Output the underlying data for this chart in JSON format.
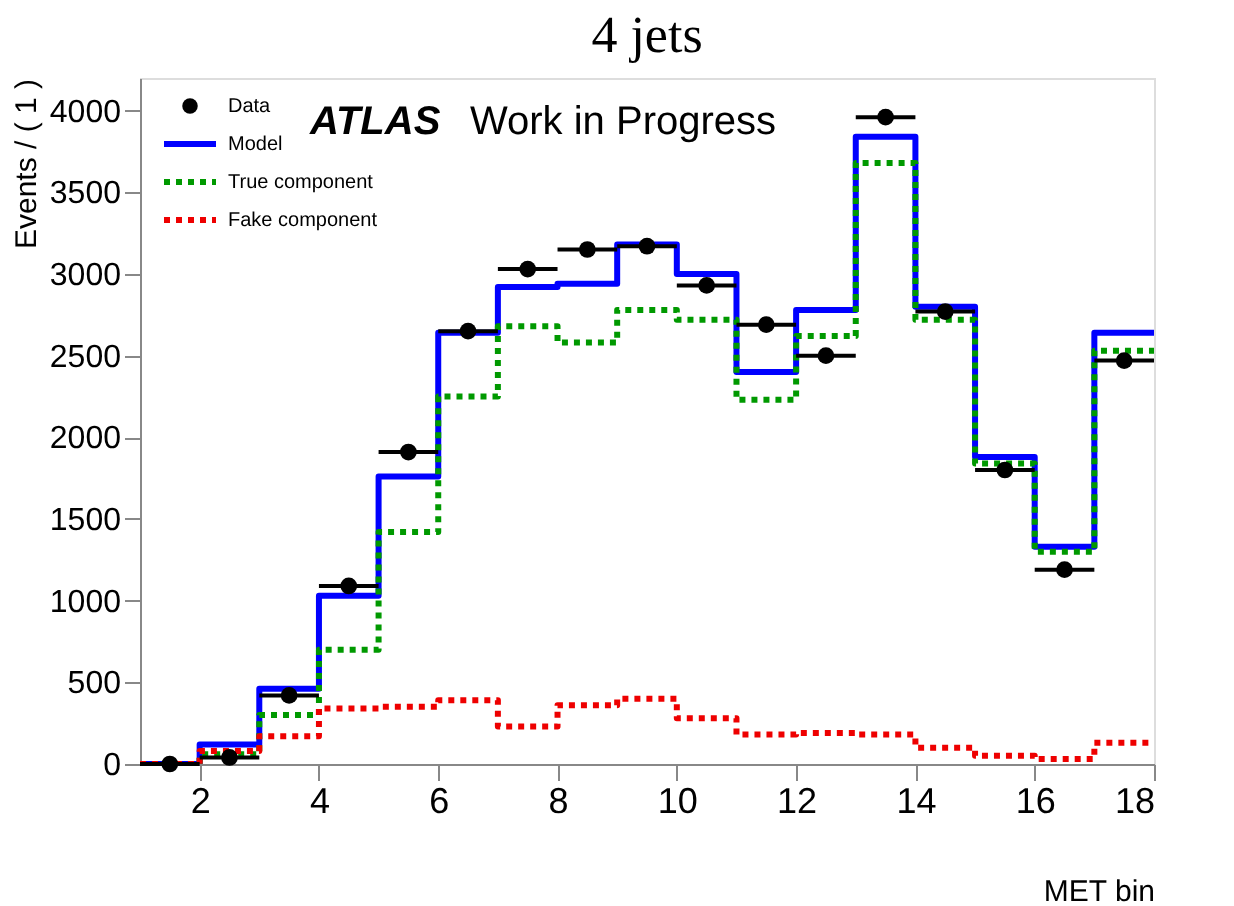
{
  "chart_data": {
    "type": "step",
    "title": "4 jets",
    "xlabel": "MET bin",
    "ylabel": "Events / ( 1 )",
    "annotations": [
      "ATLAS Work in Progress"
    ],
    "x": [
      1,
      2,
      3,
      4,
      5,
      6,
      7,
      8,
      9,
      10,
      11,
      12,
      13,
      14,
      15,
      16,
      17
    ],
    "series": [
      {
        "name": "Data",
        "type": "scatter",
        "color": "#000000",
        "marker": "circle",
        "x": [
          1.5,
          2.5,
          3.5,
          4.5,
          5.5,
          6.5,
          7.5,
          8.5,
          9.5,
          10.5,
          11.5,
          12.5,
          13.5,
          14.5,
          15.5,
          16.5,
          17.5
        ],
        "values": [
          0,
          40,
          420,
          1090,
          1910,
          2650,
          3030,
          3150,
          3170,
          2930,
          2690,
          2500,
          3960,
          2770,
          1800,
          1190,
          2470
        ],
        "xerrors": [
          0.5,
          0.5,
          0.5,
          0.5,
          0.5,
          0.5,
          0.5,
          0.5,
          0.5,
          0.5,
          0.5,
          0.5,
          0.5,
          0.5,
          0.5,
          0.5,
          0.5
        ]
      },
      {
        "name": "Model",
        "color": "#0000ff",
        "line_style": "solid",
        "values": [
          0,
          120,
          460,
          1030,
          1760,
          2640,
          2920,
          2940,
          3180,
          3000,
          2400,
          2780,
          3840,
          2800,
          1880,
          1330,
          2640
        ]
      },
      {
        "name": "True component",
        "color": "#009900",
        "line_style": "dotted",
        "values": [
          0,
          60,
          300,
          700,
          1420,
          2250,
          2680,
          2580,
          2780,
          2720,
          2230,
          2620,
          3680,
          2720,
          1840,
          1300,
          2530
        ]
      },
      {
        "name": "Fake component",
        "color": "#ee0000",
        "line_style": "dotted",
        "values": [
          0,
          80,
          170,
          340,
          350,
          390,
          230,
          360,
          400,
          280,
          180,
          190,
          180,
          100,
          50,
          30,
          130
        ]
      }
    ],
    "xlim": [
      1,
      18
    ],
    "xticks": [
      2,
      4,
      6,
      8,
      10,
      12,
      14,
      16,
      18
    ],
    "ylim": [
      0,
      4200
    ],
    "yticks": [
      0,
      500,
      1000,
      1500,
      2000,
      2500,
      3000,
      3500,
      4000
    ],
    "grid": false,
    "legend": "top left"
  }
}
